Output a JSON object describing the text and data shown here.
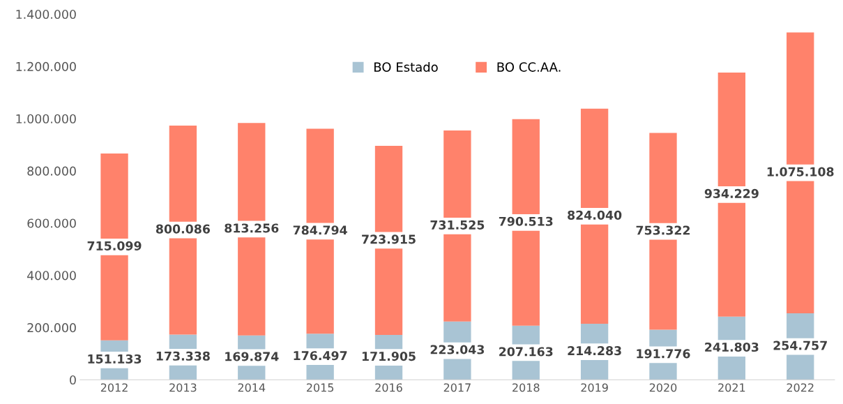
{
  "chart_data": {
    "type": "bar",
    "stacked": true,
    "categories": [
      "2012",
      "2013",
      "2014",
      "2015",
      "2016",
      "2017",
      "2018",
      "2019",
      "2020",
      "2021",
      "2022"
    ],
    "series": [
      {
        "name": "BO Estado",
        "color": "#a9c4d4",
        "values": [
          151133,
          173338,
          169874,
          176497,
          171905,
          223043,
          207163,
          214283,
          191776,
          241803,
          254757
        ],
        "value_labels": [
          "151.133",
          "173.338",
          "169.874",
          "176.497",
          "171.905",
          "223.043",
          "207.163",
          "214.283",
          "191.776",
          "241.803",
          "254.757"
        ]
      },
      {
        "name": "BO CC.AA.",
        "color": "#ff826b",
        "values": [
          715099,
          800086,
          813256,
          784794,
          723915,
          731525,
          790513,
          824040,
          753322,
          934229,
          1075108
        ],
        "value_labels": [
          "715.099",
          "800.086",
          "813.256",
          "784.794",
          "723.915",
          "731.525",
          "790.513",
          "824.040",
          "753.322",
          "934.229",
          "1.075.108"
        ]
      }
    ],
    "ylim": [
      0,
      1400000
    ],
    "yticks": [
      {
        "value": 0,
        "label": "0"
      },
      {
        "value": 200000,
        "label": "200.000"
      },
      {
        "value": 400000,
        "label": "400.000"
      },
      {
        "value": 600000,
        "label": "600.000"
      },
      {
        "value": 800000,
        "label": "800.000"
      },
      {
        "value": 1000000,
        "label": "1.000.000"
      },
      {
        "value": 1200000,
        "label": "1.200.000"
      },
      {
        "value": 1400000,
        "label": "1.400.000"
      }
    ],
    "grid": false,
    "legend": "top"
  }
}
